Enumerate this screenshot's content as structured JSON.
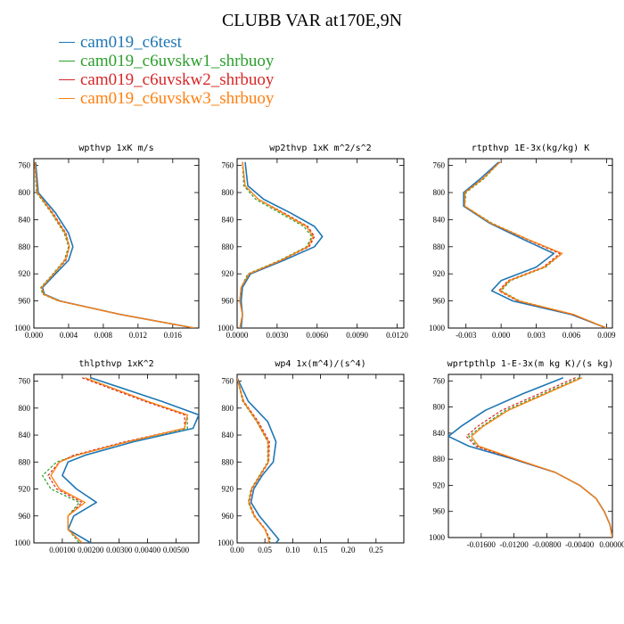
{
  "title": "CLUBB VAR at170E,9N",
  "legend": [
    {
      "label": "cam019_c6test",
      "color": "#1f77b4"
    },
    {
      "label": "cam019_c6uvskw1_shrbuoy",
      "color": "#2ca02c"
    },
    {
      "label": "cam019_c6uvskw2_shrbuoy",
      "color": "#d62728"
    },
    {
      "label": "cam019_c6uvskw3_shrbuoy",
      "color": "#ff7f0e"
    }
  ],
  "chart_data": [
    {
      "type": "line",
      "title": "wpthvp   1xK m/s",
      "xlim": [
        0.0,
        0.019
      ],
      "xticks": [
        0.0,
        0.004,
        0.008,
        0.012,
        0.016
      ],
      "xtick_labels": [
        "0.000",
        "0.004",
        "0.008",
        "0.012",
        "0.016"
      ],
      "ylim": [
        1000,
        750
      ],
      "yticks": [
        760,
        800,
        840,
        880,
        920,
        960,
        1000
      ],
      "y": [
        755,
        800,
        830,
        860,
        880,
        900,
        920,
        940,
        950,
        960,
        980,
        1000
      ],
      "series": [
        {
          "name": "cam019_c6test",
          "values": [
            0.0002,
            0.0005,
            0.0025,
            0.004,
            0.0045,
            0.004,
            0.0025,
            0.001,
            0.0012,
            0.003,
            0.01,
            0.0185
          ]
        },
        {
          "name": "cam019_c6uvskw1_shrbuoy",
          "values": [
            0.0001,
            0.0003,
            0.002,
            0.0035,
            0.004,
            0.0035,
            0.0022,
            0.0008,
            0.001,
            0.0028,
            0.01,
            0.0185
          ]
        },
        {
          "name": "cam019_c6uvskw2_shrbuoy",
          "values": [
            0.0001,
            0.0004,
            0.0022,
            0.0037,
            0.0041,
            0.0037,
            0.0023,
            0.0009,
            0.0011,
            0.0029,
            0.01,
            0.0185
          ]
        },
        {
          "name": "cam019_c6uvskw3_shrbuoy",
          "values": [
            0.0001,
            0.0004,
            0.0021,
            0.0036,
            0.0041,
            0.0036,
            0.0023,
            0.0009,
            0.0011,
            0.0029,
            0.01,
            0.0185
          ]
        }
      ]
    },
    {
      "type": "line",
      "title": "wp2thvp   1xK m^2/s^2",
      "xlim": [
        0.0,
        0.0125
      ],
      "xticks": [
        0.0,
        0.003,
        0.006,
        0.009,
        0.012
      ],
      "xtick_labels": [
        "0.0000",
        "0.0030",
        "0.0060",
        "0.0090",
        "0.0120"
      ],
      "ylim": [
        1000,
        750
      ],
      "yticks": [
        760,
        800,
        840,
        880,
        920,
        960,
        1000
      ],
      "y": [
        755,
        790,
        810,
        830,
        850,
        865,
        880,
        900,
        920,
        940,
        960,
        980,
        1000
      ],
      "series": [
        {
          "name": "cam019_c6test",
          "values": [
            0.0006,
            0.0008,
            0.002,
            0.004,
            0.0058,
            0.0064,
            0.0058,
            0.0035,
            0.001,
            0.0004,
            0.0003,
            0.0004,
            0.0003
          ]
        },
        {
          "name": "cam019_c6uvskw1_shrbuoy",
          "values": [
            0.0004,
            0.0005,
            0.0014,
            0.0032,
            0.005,
            0.0056,
            0.0052,
            0.0032,
            0.0008,
            0.0003,
            0.0002,
            0.0004,
            0.0002
          ]
        },
        {
          "name": "cam019_c6uvskw2_shrbuoy",
          "values": [
            0.0004,
            0.0006,
            0.0016,
            0.0035,
            0.0053,
            0.0058,
            0.0054,
            0.0033,
            0.0009,
            0.0003,
            0.0002,
            0.0004,
            0.0002
          ]
        },
        {
          "name": "cam019_c6uvskw3_shrbuoy",
          "values": [
            0.0004,
            0.0006,
            0.0016,
            0.0034,
            0.0052,
            0.0057,
            0.0053,
            0.0033,
            0.0009,
            0.0003,
            0.0002,
            0.0004,
            0.0002
          ]
        }
      ]
    },
    {
      "type": "line",
      "title": "rtpthvp   1E-3x(kg/kg) K",
      "xlim": [
        -0.0045,
        0.0095
      ],
      "xticks": [
        -0.003,
        0.0,
        0.003,
        0.006,
        0.009
      ],
      "xtick_labels": [
        "-0.003",
        "0.000",
        "0.003",
        "0.006",
        "0.009"
      ],
      "ylim": [
        1000,
        750
      ],
      "yticks": [
        760,
        800,
        840,
        880,
        920,
        960,
        1000
      ],
      "y": [
        755,
        780,
        800,
        820,
        845,
        870,
        890,
        910,
        930,
        945,
        960,
        980,
        1000
      ],
      "series": [
        {
          "name": "cam019_c6test",
          "values": [
            -0.0002,
            -0.0018,
            -0.0032,
            -0.0032,
            -0.001,
            0.002,
            0.0045,
            0.003,
            0.0,
            -0.0008,
            0.001,
            0.006,
            0.009
          ]
        },
        {
          "name": "cam019_c6uvskw1_shrbuoy",
          "values": [
            -0.0001,
            -0.0015,
            -0.003,
            -0.0031,
            -0.0008,
            0.0024,
            0.0052,
            0.0038,
            0.0008,
            0.0,
            0.0016,
            0.0062,
            0.009
          ]
        },
        {
          "name": "cam019_c6uvskw2_shrbuoy",
          "values": [
            -0.0001,
            -0.0016,
            -0.0031,
            -0.0031,
            -0.0009,
            0.0023,
            0.005,
            0.0036,
            0.0006,
            -0.0002,
            0.0014,
            0.0061,
            0.009
          ]
        },
        {
          "name": "cam019_c6uvskw3_shrbuoy",
          "values": [
            -0.0001,
            -0.0016,
            -0.0031,
            -0.0031,
            -0.0009,
            0.0024,
            0.0052,
            0.0037,
            0.0007,
            -0.0001,
            0.0015,
            0.0062,
            0.009
          ]
        }
      ]
    },
    {
      "type": "line",
      "title": "thlpthvp   1xK^2",
      "xlim": [
        0.0,
        0.0058
      ],
      "xticks": [
        0.001,
        0.002,
        0.003,
        0.004,
        0.005
      ],
      "xtick_labels": [
        "0.00100",
        "0.00200",
        "0.00300",
        "0.00400",
        "0.00500"
      ],
      "ylim": [
        1000,
        750
      ],
      "yticks": [
        760,
        800,
        840,
        880,
        920,
        960,
        1000
      ],
      "y": [
        755,
        790,
        810,
        830,
        850,
        870,
        880,
        900,
        920,
        940,
        960,
        980,
        1000
      ],
      "series": [
        {
          "name": "cam019_c6test",
          "values": [
            0.002,
            0.0045,
            0.0058,
            0.0056,
            0.0035,
            0.0018,
            0.0012,
            0.001,
            0.0015,
            0.0022,
            0.0014,
            0.0012,
            0.002
          ]
        },
        {
          "name": "cam019_c6uvskw1_shrbuoy",
          "values": [
            0.0018,
            0.004,
            0.0054,
            0.0054,
            0.0033,
            0.0015,
            0.0008,
            0.0003,
            0.0006,
            0.0016,
            0.0012,
            0.0012,
            0.0016
          ]
        },
        {
          "name": "cam019_c6uvskw2_shrbuoy",
          "values": [
            0.0017,
            0.0039,
            0.0053,
            0.0053,
            0.0032,
            0.0014,
            0.0009,
            0.0005,
            0.0008,
            0.0017,
            0.0012,
            0.0012,
            0.0017
          ]
        },
        {
          "name": "cam019_c6uvskw3_shrbuoy",
          "values": [
            0.0018,
            0.004,
            0.0054,
            0.0053,
            0.0033,
            0.0015,
            0.0009,
            0.0006,
            0.0009,
            0.0018,
            0.0012,
            0.0012,
            0.0017
          ]
        }
      ]
    },
    {
      "type": "line",
      "title": "wp4   1x(m^4)/(s^4)",
      "xlim": [
        0.0,
        0.3
      ],
      "xticks": [
        0.0,
        0.05,
        0.1,
        0.15,
        0.2,
        0.25
      ],
      "xtick_labels": [
        "0.00",
        "0.05",
        "0.10",
        "0.15",
        "0.20",
        "0.25"
      ],
      "ylim": [
        1000,
        750
      ],
      "yticks": [
        760,
        800,
        840,
        880,
        920,
        960,
        1000
      ],
      "y": [
        755,
        790,
        820,
        850,
        880,
        900,
        920,
        940,
        960,
        980,
        995,
        1000
      ],
      "series": [
        {
          "name": "cam019_c6test",
          "values": [
            0.0,
            0.02,
            0.055,
            0.07,
            0.065,
            0.045,
            0.03,
            0.025,
            0.04,
            0.06,
            0.075,
            0.07
          ]
        },
        {
          "name": "cam019_c6uvskw1_shrbuoy",
          "values": [
            0.0,
            0.01,
            0.035,
            0.055,
            0.055,
            0.04,
            0.025,
            0.02,
            0.03,
            0.05,
            0.06,
            0.058
          ]
        },
        {
          "name": "cam019_c6uvskw2_shrbuoy",
          "values": [
            0.0,
            0.012,
            0.038,
            0.058,
            0.057,
            0.042,
            0.027,
            0.022,
            0.032,
            0.051,
            0.058,
            0.057
          ]
        },
        {
          "name": "cam019_c6uvskw3_shrbuoy",
          "values": [
            0.0,
            0.011,
            0.036,
            0.056,
            0.056,
            0.041,
            0.026,
            0.021,
            0.031,
            0.05,
            0.057,
            0.056
          ]
        }
      ]
    },
    {
      "type": "line",
      "title": "wprtpthlp   1-E-3x(m kg K)/(s kg)",
      "xlim": [
        -0.02,
        0.0
      ],
      "xticks": [
        -0.016,
        -0.012,
        -0.008,
        -0.004,
        0.0
      ],
      "xtick_labels": [
        "-0.01600",
        "-0.01200",
        "-0.00800",
        "-0.00400",
        "0.00000"
      ],
      "ylim": [
        1000,
        750
      ],
      "yticks": [
        760,
        800,
        840,
        880,
        920,
        960,
        1000
      ],
      "y": [
        755,
        780,
        805,
        830,
        845,
        860,
        880,
        900,
        920,
        940,
        960,
        980,
        1000
      ],
      "series": [
        {
          "name": "cam019_c6test",
          "values": [
            -0.006,
            -0.011,
            -0.0155,
            -0.0185,
            -0.02,
            -0.0175,
            -0.012,
            -0.007,
            -0.004,
            -0.002,
            -0.001,
            -0.0003,
            0.0
          ]
        },
        {
          "name": "cam019_c6uvskw1_shrbuoy",
          "values": [
            -0.004,
            -0.0085,
            -0.013,
            -0.016,
            -0.0175,
            -0.0165,
            -0.0118,
            -0.007,
            -0.004,
            -0.002,
            -0.001,
            -0.0003,
            0.0
          ]
        },
        {
          "name": "cam019_c6uvskw2_shrbuoy",
          "values": [
            -0.0045,
            -0.009,
            -0.0135,
            -0.0165,
            -0.0178,
            -0.0167,
            -0.0119,
            -0.007,
            -0.004,
            -0.002,
            -0.001,
            -0.0003,
            0.0
          ]
        },
        {
          "name": "cam019_c6uvskw3_shrbuoy",
          "values": [
            -0.0037,
            -0.0082,
            -0.0127,
            -0.0158,
            -0.0172,
            -0.0163,
            -0.0117,
            -0.007,
            -0.004,
            -0.002,
            -0.001,
            -0.0003,
            0.0
          ]
        }
      ]
    }
  ]
}
